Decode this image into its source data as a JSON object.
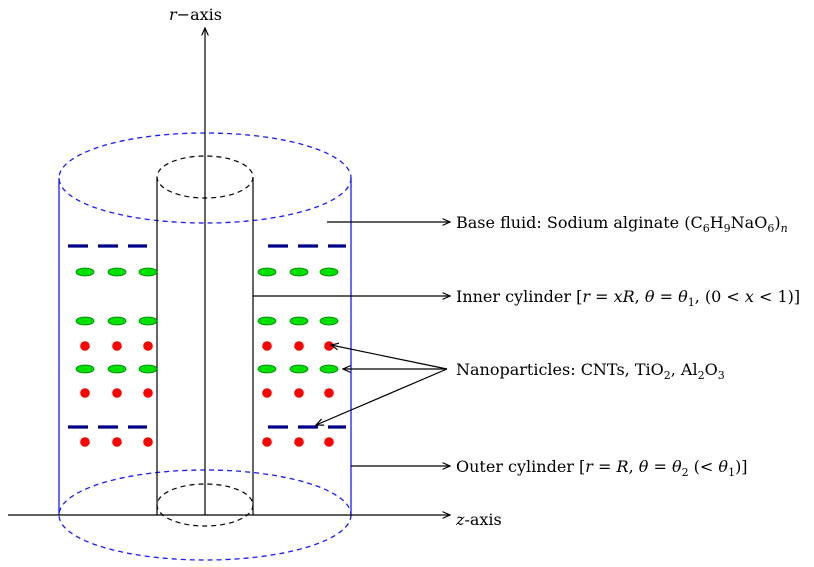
{
  "axes": {
    "r_var": "r",
    "r_suffix": "−axis",
    "z_var": "z",
    "z_suffix": "-axis"
  },
  "labels": {
    "base_fluid": {
      "main": "Base fluid: Sodium alginate (C",
      "parts": [
        {
          "t": "6",
          "sub": true
        },
        {
          "t": "H"
        },
        {
          "t": "9",
          "sub": true
        },
        {
          "t": "NaO"
        },
        {
          "t": "6",
          "sub": true
        },
        {
          "t": ")"
        },
        {
          "t": "n",
          "sub": true,
          "italic": true
        }
      ]
    },
    "inner_cylinder": {
      "parts": [
        {
          "t": "Inner cylinder ["
        },
        {
          "t": "r",
          "italic": true
        },
        {
          "t": " = "
        },
        {
          "t": "xR",
          "italic": true
        },
        {
          "t": ", "
        },
        {
          "t": "θ",
          "italic": true
        },
        {
          "t": " = "
        },
        {
          "t": "θ",
          "italic": true
        },
        {
          "t": "1",
          "sub": true
        },
        {
          "t": ",  (0 < "
        },
        {
          "t": "x",
          "italic": true
        },
        {
          "t": " < 1)]"
        }
      ]
    },
    "nanoparticles": {
      "parts": [
        {
          "t": "Nanoparticles: CNTs, TiO"
        },
        {
          "t": "2",
          "sub": true
        },
        {
          "t": ", Al"
        },
        {
          "t": "2",
          "sub": true
        },
        {
          "t": "O"
        },
        {
          "t": "3",
          "sub": true
        }
      ]
    },
    "outer_cylinder": {
      "parts": [
        {
          "t": "Outer cylinder ["
        },
        {
          "t": "r",
          "italic": true
        },
        {
          "t": " = "
        },
        {
          "t": "R",
          "italic": true
        },
        {
          "t": ", "
        },
        {
          "t": "θ",
          "italic": true
        },
        {
          "t": " = "
        },
        {
          "t": "θ",
          "italic": true
        },
        {
          "t": "2",
          "sub": true
        },
        {
          "t": " (< "
        },
        {
          "t": "θ",
          "italic": true
        },
        {
          "t": "1",
          "sub": true
        },
        {
          "t": ")]"
        }
      ]
    }
  },
  "colors": {
    "outer_cylinder": "#1a1aff",
    "cnt_dash": "#00008b",
    "tio2_ellipse": "#00e000",
    "al2o3_dot": "#ff0000",
    "line": "#000000"
  }
}
